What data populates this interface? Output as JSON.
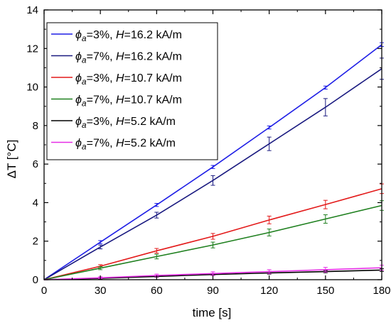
{
  "chart_data": {
    "type": "line",
    "xlabel": "time [s]",
    "ylabel": "ΔT [°C]",
    "xlim": [
      0,
      180
    ],
    "ylim": [
      0,
      14
    ],
    "xticks": [
      0,
      30,
      60,
      90,
      120,
      150,
      180
    ],
    "yticks": [
      0,
      2,
      4,
      6,
      8,
      10,
      12,
      14
    ],
    "grid": false,
    "legend_position": "top-left",
    "x": [
      0,
      30,
      60,
      90,
      120,
      150,
      180
    ],
    "series": [
      {
        "name": "ϕa=3%, H=16.2 kA/m",
        "phi": "3%",
        "h": "16.2 kA/m",
        "color": "#1f1fe6",
        "values": [
          0,
          1.95,
          3.88,
          5.85,
          7.9,
          9.97,
          12.2
        ],
        "err": [
          0,
          0.08,
          0.08,
          0.08,
          0.08,
          0.08,
          0.1
        ]
      },
      {
        "name": "ϕa=7%, H=16.2 kA/m",
        "phi": "7%",
        "h": "16.2 kA/m",
        "color": "#1a1a80",
        "values": [
          0,
          1.7,
          3.35,
          5.15,
          7.05,
          8.95,
          10.95
        ],
        "err": [
          0,
          0.1,
          0.15,
          0.25,
          0.35,
          0.45,
          0.55
        ]
      },
      {
        "name": "ϕa=3%, H=10.7 kA/m",
        "phi": "3%",
        "h": "10.7 kA/m",
        "color": "#e31a1a",
        "values": [
          0,
          0.7,
          1.5,
          2.25,
          3.1,
          3.9,
          4.72
        ],
        "err": [
          0,
          0.08,
          0.12,
          0.15,
          0.2,
          0.22,
          0.25
        ]
      },
      {
        "name": "ϕa=7%, H=10.7 kA/m",
        "phi": "7%",
        "h": "10.7 kA/m",
        "color": "#1f801f",
        "values": [
          0,
          0.6,
          1.2,
          1.8,
          2.45,
          3.15,
          3.85
        ],
        "err": [
          0,
          0.08,
          0.12,
          0.15,
          0.18,
          0.22,
          0.25
        ]
      },
      {
        "name": "ϕa=3%, H=5.2 kA/m",
        "phi": "3%",
        "h": "5.2 kA/m",
        "color": "#000000",
        "values": [
          0,
          0.07,
          0.17,
          0.27,
          0.35,
          0.42,
          0.5
        ],
        "err": [
          0,
          0.03,
          0.04,
          0.05,
          0.06,
          0.06,
          0.07
        ]
      },
      {
        "name": "ϕa=7%, H=5.2 kA/m",
        "phi": "7%",
        "h": "5.2 kA/m",
        "color": "#e62ee6",
        "values": [
          0,
          0.1,
          0.22,
          0.32,
          0.42,
          0.52,
          0.62
        ],
        "err": [
          0,
          0.05,
          0.07,
          0.09,
          0.1,
          0.12,
          0.13
        ]
      }
    ]
  }
}
